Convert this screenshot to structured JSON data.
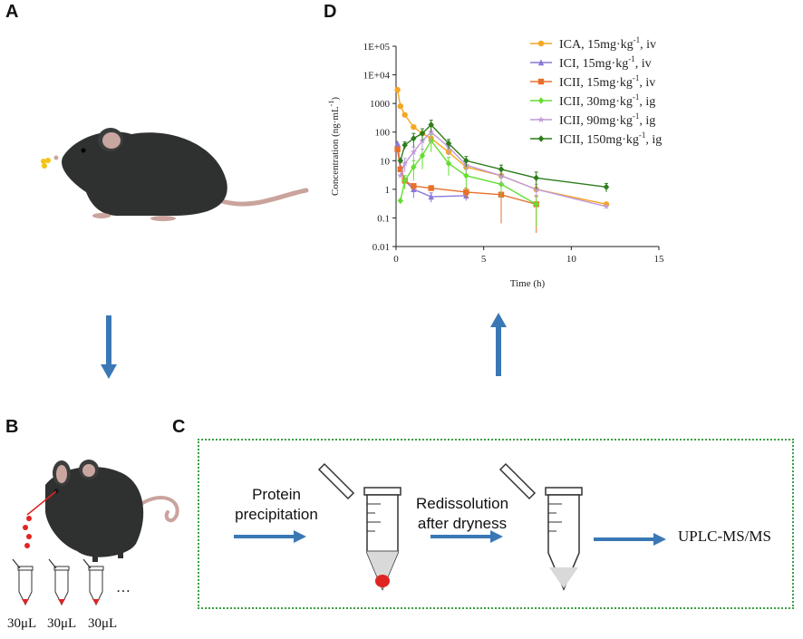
{
  "panels": {
    "a": "A",
    "b": "B",
    "c": "C",
    "d": "D"
  },
  "colors": {
    "arrow": "#3a78b5",
    "dashed_border": "#3aa043",
    "mouse": "#2f3130",
    "ear": "#c9a7a0",
    "tail": "#caa39c",
    "drug": "#f2c417",
    "blood": "#e02323"
  },
  "panel_b": {
    "volumes": [
      "30μL",
      "30μL",
      "30μL"
    ],
    "ellipsis": "…"
  },
  "panel_c": {
    "step1": {
      "line1": "Protein",
      "line2": "precipitation"
    },
    "step2": {
      "line1": "Redissolution",
      "line2": "after dryness"
    },
    "output": "UPLC-MS/MS"
  },
  "chart_data": {
    "type": "line",
    "title": "",
    "xlabel": "Time (h)",
    "ylabel": "Concentration (ng·mL",
    "ylabel_sup": "-1",
    "ylabel_end": ")",
    "xlim": [
      0,
      15
    ],
    "ylim_log10": [
      -2,
      5
    ],
    "x_ticks": [
      0,
      5,
      10,
      15
    ],
    "x_tick_labels": [
      "0",
      "5",
      "10",
      "15"
    ],
    "y_ticks_log10": [
      -2,
      -1,
      0,
      1,
      2,
      3,
      4,
      5
    ],
    "y_tick_labels": [
      "0.01",
      "0.1",
      "1",
      "10",
      "100",
      "1000",
      "1E+04",
      "1E+05"
    ],
    "series": [
      {
        "name": "ICA, 15mg·kg",
        "sup": "-1",
        "suffix": ", iv",
        "color": "#f5a623",
        "marker": "circle",
        "x": [
          0.083,
          0.25,
          0.5,
          1,
          1.5,
          2,
          3,
          4,
          6,
          8,
          12
        ],
        "y": [
          3000,
          800,
          400,
          150,
          90,
          60,
          20,
          6,
          3,
          1,
          0.3
        ],
        "err": [
          0,
          0,
          0,
          0,
          0,
          0,
          0,
          0,
          0,
          0,
          0
        ]
      },
      {
        "name": "ICI, 15mg·kg",
        "sup": "-1",
        "suffix": ", iv",
        "color": "#8b79d8",
        "marker": "triangle",
        "x": [
          0.083,
          0.25,
          0.5,
          1,
          2,
          4
        ],
        "y": [
          40,
          6,
          2,
          1,
          0.55,
          0.6
        ],
        "err": [
          0,
          0,
          0,
          0.5,
          0.2,
          0.2
        ]
      },
      {
        "name": "ICII, 15mg·kg",
        "sup": "-1",
        "suffix": ", iv",
        "color": "#e8702a",
        "marker": "square",
        "x": [
          0.083,
          0.25,
          0.5,
          1,
          2,
          4,
          6,
          8
        ],
        "y": [
          25,
          5,
          2,
          1.3,
          1.1,
          0.8,
          0.65,
          0.3
        ],
        "err": [
          0,
          0,
          0,
          0,
          0,
          0.3,
          0.8,
          0.3
        ]
      },
      {
        "name": "ICII, 30mg·kg",
        "sup": "-1",
        "suffix": ", ig",
        "color": "#66dd33",
        "marker": "diamond",
        "x": [
          0.25,
          0.5,
          1,
          1.5,
          2,
          3,
          4,
          6,
          8
        ],
        "y": [
          0.4,
          2,
          6,
          15,
          50,
          8,
          3,
          1.5,
          0.3
        ],
        "err": [
          0,
          1,
          4,
          10,
          30,
          5,
          2,
          1,
          0.25
        ]
      },
      {
        "name": "ICII, 90mg·kg",
        "sup": "-1",
        "suffix": ", ig",
        "color": "#c09ad8",
        "marker": "star",
        "x": [
          0.25,
          0.5,
          1,
          1.5,
          2,
          3,
          4,
          6,
          8,
          12
        ],
        "y": [
          3,
          8,
          20,
          50,
          100,
          30,
          7,
          3,
          1,
          0.25
        ],
        "err": [
          0,
          4,
          10,
          30,
          60,
          15,
          3,
          1.5,
          0.5,
          0
        ]
      },
      {
        "name": "ICII, 150mg·kg",
        "sup": "-1",
        "suffix": ", ig",
        "color": "#2e7d1c",
        "marker": "diamond",
        "x": [
          0.25,
          0.5,
          1,
          1.5,
          2,
          3,
          4,
          6,
          8,
          12
        ],
        "y": [
          10,
          35,
          60,
          90,
          180,
          40,
          10,
          5,
          2.5,
          1.2
        ],
        "err": [
          0,
          10,
          30,
          40,
          80,
          15,
          4,
          2,
          1.5,
          0.4
        ]
      }
    ],
    "legend_position": "top-right"
  }
}
